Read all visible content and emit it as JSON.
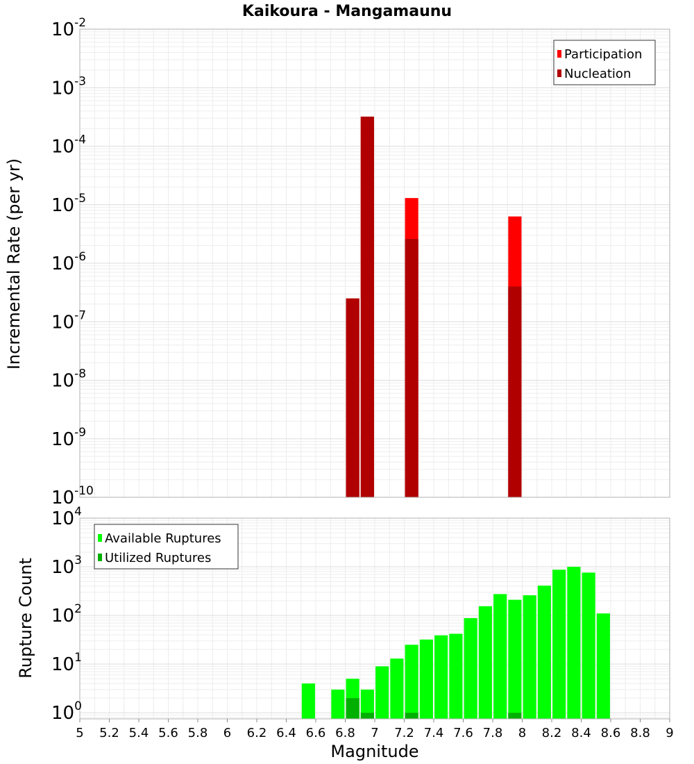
{
  "chart_data": [
    {
      "type": "bar",
      "scale": "log",
      "title": "Kaikoura - Mangamaunu",
      "ylabel": "Incremental Rate (per yr)",
      "xlim": [
        5,
        9
      ],
      "ylim": [
        1e-10,
        0.01
      ],
      "ytick_exponents": [
        "-10",
        "-9",
        "-8",
        "-7",
        "-6",
        "-5",
        "-4",
        "-3",
        "-2"
      ],
      "ytick_base": "10",
      "grid": true,
      "legend_position": "top-right",
      "series": [
        {
          "name": "Participation",
          "color": "#ff0000",
          "points": [
            {
              "x": 6.85,
              "y": 2.5e-07
            },
            {
              "x": 6.95,
              "y": 0.00032
            },
            {
              "x": 7.25,
              "y": 1.3e-05
            },
            {
              "x": 7.95,
              "y": 6.3e-06
            }
          ]
        },
        {
          "name": "Nucleation",
          "color": "#b00000",
          "points": [
            {
              "x": 6.85,
              "y": 2.5e-07
            },
            {
              "x": 6.95,
              "y": 0.00032
            },
            {
              "x": 7.25,
              "y": 2.6e-06
            },
            {
              "x": 7.95,
              "y": 4e-07
            }
          ]
        }
      ]
    },
    {
      "type": "bar",
      "scale": "log",
      "xlabel": "Magnitude",
      "ylabel": "Rupture Count",
      "xlim": [
        5,
        9
      ],
      "ylim": [
        0.75,
        10000
      ],
      "ytick_exponents": [
        "0",
        "1",
        "2",
        "3",
        "4"
      ],
      "ytick_base": "10",
      "xticks": [
        "5",
        "5.2",
        "5.4",
        "5.6",
        "5.8",
        "6",
        "6.2",
        "6.4",
        "6.6",
        "6.8",
        "7",
        "7.2",
        "7.4",
        "7.6",
        "7.8",
        "8",
        "8.2",
        "8.4",
        "8.6",
        "8.8",
        "9"
      ],
      "grid": true,
      "legend_position": "top-left",
      "series": [
        {
          "name": "Available Ruptures",
          "color": "#00ff00",
          "points": [
            {
              "x": 6.55,
              "y": 4
            },
            {
              "x": 6.75,
              "y": 3
            },
            {
              "x": 6.85,
              "y": 5
            },
            {
              "x": 6.95,
              "y": 3
            },
            {
              "x": 7.05,
              "y": 9
            },
            {
              "x": 7.15,
              "y": 13
            },
            {
              "x": 7.25,
              "y": 25
            },
            {
              "x": 7.35,
              "y": 32
            },
            {
              "x": 7.45,
              "y": 39
            },
            {
              "x": 7.55,
              "y": 42
            },
            {
              "x": 7.65,
              "y": 88
            },
            {
              "x": 7.75,
              "y": 155
            },
            {
              "x": 7.85,
              "y": 275
            },
            {
              "x": 7.95,
              "y": 210
            },
            {
              "x": 8.05,
              "y": 260
            },
            {
              "x": 8.15,
              "y": 410
            },
            {
              "x": 8.25,
              "y": 870
            },
            {
              "x": 8.35,
              "y": 1000
            },
            {
              "x": 8.45,
              "y": 760
            },
            {
              "x": 8.55,
              "y": 110
            }
          ]
        },
        {
          "name": "Utilized Ruptures",
          "color": "#00b000",
          "points": [
            {
              "x": 6.85,
              "y": 2
            },
            {
              "x": 6.95,
              "y": 1
            },
            {
              "x": 7.25,
              "y": 1
            },
            {
              "x": 7.95,
              "y": 1
            }
          ]
        }
      ]
    }
  ]
}
